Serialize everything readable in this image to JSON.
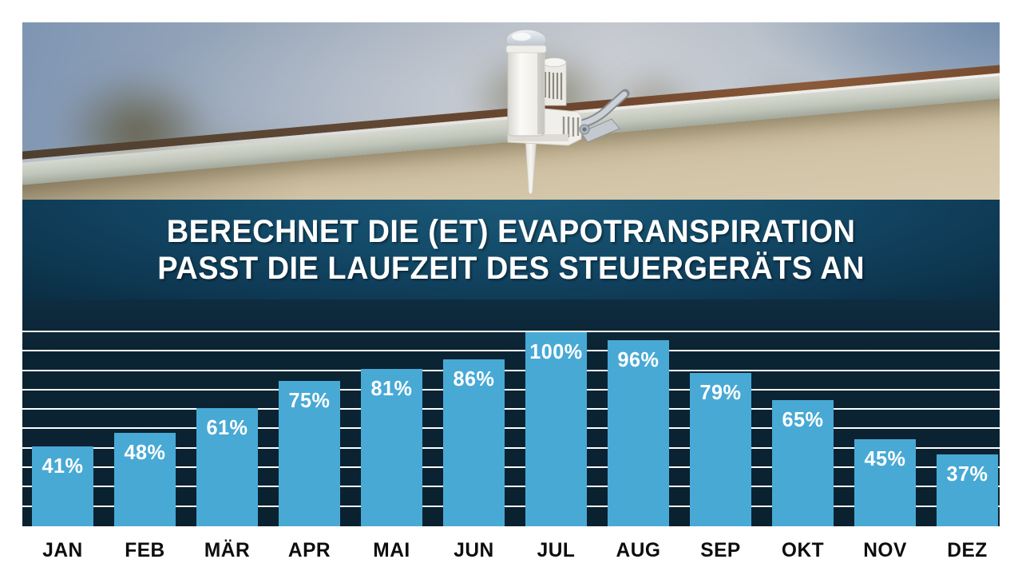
{
  "banner": {
    "line1": "BERECHNET DIE (ET) EVAPOTRANSPIRATION",
    "line2": "PASST DIE LAUFZEIT DES STEUERGERÄTS AN"
  },
  "photo": {
    "subject": "wireless-rain-sensor-mounted-on-roof-edge"
  },
  "chart_data": {
    "type": "bar",
    "categories": [
      "JAN",
      "FEB",
      "MÄR",
      "APR",
      "MAI",
      "JUN",
      "JUL",
      "AUG",
      "SEP",
      "OKT",
      "NOV",
      "DEZ"
    ],
    "values": [
      41,
      48,
      61,
      75,
      81,
      86,
      100,
      96,
      79,
      65,
      45,
      37
    ],
    "value_labels": [
      "41%",
      "48%",
      "61%",
      "75%",
      "81%",
      "86%",
      "100%",
      "96%",
      "79%",
      "65%",
      "45%",
      "37%"
    ],
    "title": "",
    "xlabel": "",
    "ylabel": "",
    "ylim": [
      0,
      100
    ],
    "gridline_step_percent": 10,
    "grid": true,
    "legend_position": "none",
    "colors": {
      "bar": "#48a9d5",
      "plot_background": "#0a2130",
      "gridline": "#ffffff",
      "value_label": "#ffffff",
      "category_label": "#0d0d0d",
      "banner_center": "#134058",
      "banner_edge": "#03141f"
    }
  }
}
